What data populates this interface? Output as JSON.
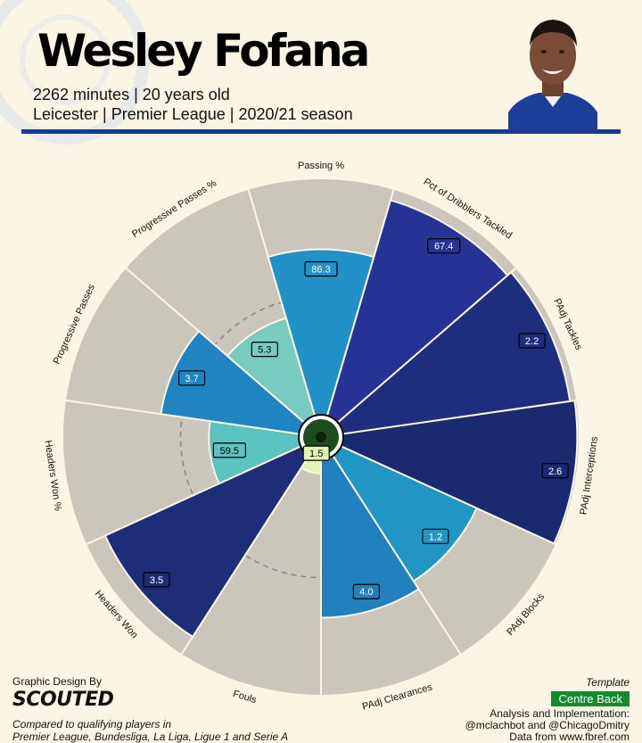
{
  "header": {
    "player_name": "Wesley Fofana",
    "line1": "2262 minutes | 20 years old",
    "line2": "Leicester | Premier League | 2020/21 season"
  },
  "colors": {
    "background": "#fbf5e6",
    "slice_bg": "#cbc6bb",
    "rule": "#1b3a8f"
  },
  "chart_data": {
    "type": "polar-bar",
    "axis_max": 100,
    "categories": [
      "Passing %",
      "Pct of Dribblers Tackled",
      "PAdj Tackles",
      "PAdj Interceptions",
      "PAdj Blocks",
      "PAdj Clearances",
      "Fouls",
      "Headers Won",
      "Headers Won %",
      "Progressive Passes",
      "Progressive Passes %"
    ],
    "values": [
      86.3,
      67.4,
      2.2,
      2.6,
      1.2,
      4.0,
      1.5,
      3.5,
      59.5,
      3.7,
      5.3
    ],
    "value_labels": [
      "86.3",
      "67.4",
      "2.2",
      "2.6",
      "1.2",
      "4.0",
      "1.5",
      "3.5",
      "59.5",
      "3.7",
      "5.3"
    ],
    "percentiles": [
      70,
      95,
      97,
      99,
      63,
      67,
      6,
      91,
      38,
      59,
      43
    ],
    "colors": [
      "#2191c8",
      "#253394",
      "#1e2e7e",
      "#1a2a70",
      "#2196c4",
      "#2280bf",
      "#e2f4b4",
      "#1d2d78",
      "#5cc2c2",
      "#2184c2",
      "#78ccbf"
    ]
  },
  "footer": {
    "design_by": "Graphic Design By",
    "logo_text": "SCOUTED",
    "compared_line1": "Compared to qualifying players in",
    "compared_line2": "Premier League, Bundesliga, La Liga, Ligue 1 and Serie A",
    "template_label": "Template",
    "template_value": "Centre Back",
    "credit_line1": "Analysis and Implementation:",
    "credit_line2": "@mclachbot and @ChicagoDmitry",
    "credit_line3": "Data from www.fbref.com"
  }
}
